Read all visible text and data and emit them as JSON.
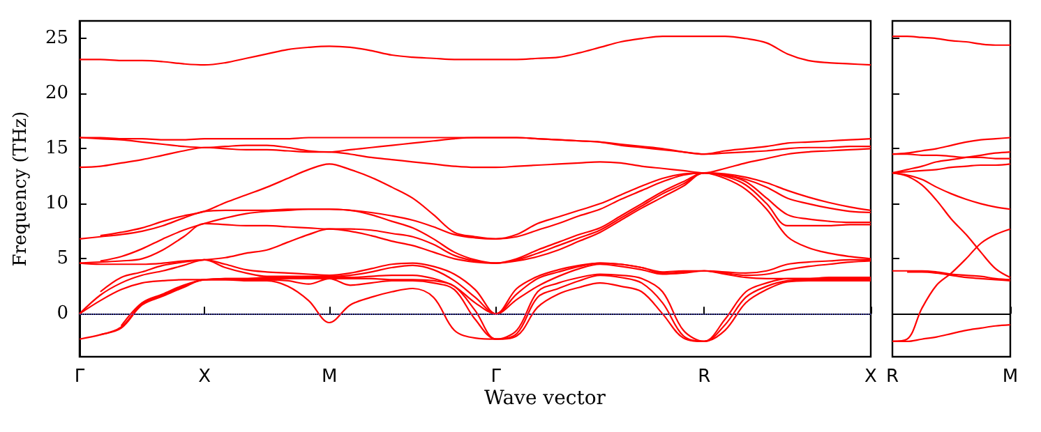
{
  "chart_data": [
    {
      "type": "line",
      "xlabel": "Wave vector",
      "ylabel": "Frequency (THz)",
      "marker": "none",
      "categories": [
        "Γ",
        null,
        null,
        null,
        null,
        null,
        "X",
        null,
        null,
        null,
        null,
        null,
        "M",
        null,
        null,
        null,
        null,
        null,
        null,
        null,
        "Γ",
        null,
        null,
        null,
        null,
        null,
        null,
        null,
        null,
        null,
        "R",
        null,
        null,
        null,
        null,
        null,
        null,
        null,
        "X"
      ],
      "ylim": [
        -3.9,
        26.6
      ],
      "yticks": [
        0,
        5,
        10,
        15,
        20,
        25
      ],
      "ref_lines": [
        {
          "axis": "y",
          "value": 0,
          "color": "#6666ff",
          "line_style": "dotted"
        }
      ],
      "series": [
        {
          "color": "#ff0000",
          "values": [
            -2.3,
            -1.9,
            -1.3,
            0.8,
            1.6,
            2.4,
            3.1,
            3.1,
            3.0,
            3.0,
            2.5,
            1.2,
            -0.8,
            0.8,
            1.5,
            2.0,
            2.3,
            1.5,
            -1.5,
            -2.2,
            -2.3,
            -2.0,
            0.6,
            1.8,
            2.4,
            2.8,
            2.5,
            2.0,
            0.0,
            -2.2,
            -2.5,
            -1.5,
            1.0,
            2.2,
            2.9,
            3.0,
            3.0,
            3.0,
            3.0
          ]
        },
        {
          "color": "#ff0000",
          "values": [
            null,
            -1.9,
            -1.2,
            0.9,
            1.7,
            2.5,
            3.1,
            3.1,
            3.1,
            3.1,
            3.0,
            2.7,
            3.2,
            2.6,
            2.8,
            3.0,
            3.0,
            2.8,
            2.2,
            -0.5,
            -2.3,
            -1.8,
            1.5,
            2.3,
            3.0,
            3.5,
            3.3,
            2.8,
            1.0,
            -2.0,
            -2.5,
            -1.0,
            1.5,
            2.5,
            3.0,
            3.1,
            3.1,
            3.1,
            3.1
          ]
        },
        {
          "color": "#ff0000",
          "values": [
            null,
            null,
            -1.1,
            1.0,
            1.8,
            2.6,
            3.1,
            3.2,
            3.2,
            3.2,
            3.2,
            3.2,
            3.2,
            3.2,
            3.2,
            3.1,
            3.1,
            3.0,
            2.5,
            0.3,
            -2.3,
            -1.5,
            2.0,
            2.8,
            3.3,
            3.6,
            3.5,
            3.2,
            2.0,
            -1.5,
            -2.5,
            -0.5,
            2.0,
            2.8,
            3.2,
            3.2,
            3.2,
            3.2,
            3.2
          ]
        },
        {
          "color": "#ff0000",
          "values": [
            0,
            1.2,
            2.2,
            2.8,
            3.0,
            3.1,
            3.1,
            3.2,
            3.2,
            3.3,
            3.3,
            3.3,
            3.3,
            3.3,
            3.4,
            3.5,
            3.5,
            3.2,
            2.5,
            1.0,
            0,
            1.3,
            2.5,
            3.4,
            4.1,
            4.5,
            4.3,
            4.0,
            3.6,
            3.7,
            3.9,
            3.6,
            3.3,
            3.2,
            3.2,
            3.2,
            3.3,
            3.3,
            3.3
          ]
        },
        {
          "color": "#ff0000",
          "values": [
            0,
            1.7,
            2.8,
            3.5,
            3.9,
            4.4,
            4.9,
            4.2,
            3.7,
            3.4,
            3.4,
            3.4,
            3.4,
            3.5,
            3.8,
            4.2,
            4.4,
            4.0,
            3.0,
            1.5,
            0,
            1.8,
            3.2,
            3.8,
            4.3,
            4.6,
            4.5,
            4.2,
            3.7,
            3.8,
            3.9,
            3.7,
            3.5,
            3.6,
            4.0,
            4.3,
            4.5,
            4.7,
            4.8
          ]
        },
        {
          "color": "#ff0000",
          "values": [
            null,
            2.0,
            3.3,
            3.8,
            4.4,
            4.7,
            4.9,
            4.5,
            4.0,
            3.8,
            3.7,
            3.6,
            3.5,
            3.7,
            4.1,
            4.5,
            4.6,
            4.3,
            3.6,
            2.2,
            0,
            2.3,
            3.4,
            4.0,
            4.4,
            4.6,
            4.5,
            4.2,
            3.8,
            3.9,
            3.9,
            3.8,
            3.7,
            3.9,
            4.5,
            4.7,
            4.8,
            4.9,
            4.9
          ]
        },
        {
          "color": "#ff0000",
          "values": [
            4.6,
            4.5,
            4.5,
            4.5,
            4.6,
            4.8,
            4.9,
            5.1,
            5.5,
            5.8,
            6.5,
            7.2,
            7.7,
            7.5,
            7.1,
            6.6,
            6.2,
            5.6,
            5.0,
            4.7,
            4.6,
            4.8,
            5.2,
            5.8,
            6.6,
            7.4,
            8.5,
            9.6,
            10.6,
            11.6,
            12.8,
            12.3,
            11.3,
            9.5,
            7.0,
            6.0,
            5.5,
            5.2,
            5.0
          ]
        },
        {
          "color": "#ff0000",
          "values": [
            4.6,
            4.7,
            4.8,
            5.0,
            5.8,
            7.0,
            8.2,
            8.1,
            8.0,
            8.0,
            7.9,
            7.8,
            7.7,
            7.7,
            7.6,
            7.3,
            7.0,
            6.3,
            5.3,
            4.8,
            4.6,
            4.9,
            5.5,
            6.2,
            6.9,
            7.6,
            8.7,
            9.8,
            10.9,
            11.8,
            12.8,
            12.5,
            11.7,
            10.0,
            8.0,
            8.0,
            8.0,
            8.1,
            8.1
          ]
        },
        {
          "color": "#ff0000",
          "values": [
            null,
            4.8,
            5.2,
            5.9,
            6.8,
            7.6,
            8.2,
            8.7,
            9.1,
            9.3,
            9.4,
            9.5,
            9.5,
            9.4,
            9.0,
            8.4,
            7.8,
            6.8,
            5.6,
            4.9,
            4.6,
            5.0,
            5.8,
            6.5,
            7.2,
            7.8,
            8.9,
            10.0,
            11.1,
            12.0,
            12.8,
            12.6,
            12.0,
            10.5,
            9.0,
            8.6,
            8.4,
            8.3,
            8.3
          ]
        },
        {
          "color": "#ff0000",
          "values": [
            6.8,
            7.0,
            7.2,
            7.5,
            8.0,
            8.7,
            9.3,
            9.4,
            9.4,
            9.4,
            9.5,
            9.5,
            9.5,
            9.4,
            9.2,
            8.9,
            8.5,
            7.9,
            7.2,
            6.9,
            6.8,
            7.0,
            7.6,
            8.2,
            8.9,
            9.5,
            10.4,
            11.2,
            12.0,
            12.6,
            12.8,
            12.6,
            12.2,
            11.5,
            10.5,
            10.0,
            9.6,
            9.3,
            9.2
          ]
        },
        {
          "color": "#ff0000",
          "values": [
            null,
            7.1,
            7.4,
            7.8,
            8.4,
            8.9,
            9.3,
            10.1,
            10.8,
            11.5,
            12.3,
            13.1,
            13.6,
            13.1,
            12.4,
            11.5,
            10.5,
            9.0,
            7.4,
            7.0,
            6.8,
            7.2,
            8.2,
            8.8,
            9.4,
            10.0,
            10.8,
            11.6,
            12.3,
            12.7,
            12.8,
            12.7,
            12.4,
            11.9,
            11.2,
            10.6,
            10.1,
            9.7,
            9.4
          ]
        },
        {
          "color": "#ff0000",
          "values": [
            13.3,
            13.4,
            13.7,
            14.0,
            14.4,
            14.8,
            15.1,
            15.0,
            14.9,
            14.9,
            14.8,
            14.7,
            14.7,
            14.5,
            14.2,
            14.0,
            13.8,
            13.6,
            13.4,
            13.3,
            13.3,
            13.4,
            13.5,
            13.6,
            13.7,
            13.8,
            13.7,
            13.4,
            13.2,
            13.0,
            12.8,
            13.2,
            13.7,
            14.1,
            14.5,
            14.7,
            14.8,
            14.9,
            15.0
          ]
        },
        {
          "color": "#ff0000",
          "values": [
            16.0,
            15.9,
            15.8,
            15.6,
            15.4,
            15.2,
            15.1,
            15.2,
            15.3,
            15.3,
            15.1,
            14.8,
            14.7,
            14.9,
            15.1,
            15.3,
            15.5,
            15.7,
            15.9,
            16.0,
            16.0,
            16.0,
            15.9,
            15.8,
            15.7,
            15.6,
            15.3,
            15.1,
            14.9,
            14.7,
            14.5,
            14.6,
            14.7,
            14.8,
            15.0,
            15.1,
            15.1,
            15.2,
            15.2
          ]
        },
        {
          "color": "#ff0000",
          "values": [
            16.0,
            16.0,
            15.9,
            15.9,
            15.8,
            15.8,
            15.9,
            15.9,
            15.9,
            15.9,
            15.9,
            16.0,
            16.0,
            16.0,
            16.0,
            16.0,
            16.0,
            16.0,
            16.0,
            16.0,
            16.0,
            16.0,
            15.9,
            15.8,
            15.7,
            15.6,
            15.4,
            15.2,
            15.0,
            14.7,
            14.5,
            14.8,
            15.0,
            15.2,
            15.5,
            15.6,
            15.7,
            15.8,
            15.9
          ]
        },
        {
          "color": "#ff0000",
          "values": [
            23.1,
            23.1,
            23.0,
            23.0,
            22.9,
            22.7,
            22.6,
            22.8,
            23.2,
            23.6,
            24.0,
            24.2,
            24.3,
            24.2,
            23.9,
            23.5,
            23.3,
            23.2,
            23.1,
            23.1,
            23.1,
            23.1,
            23.2,
            23.3,
            23.7,
            24.2,
            24.7,
            25.0,
            25.2,
            25.2,
            25.2,
            25.2,
            25.0,
            24.6,
            23.6,
            23.0,
            22.8,
            22.7,
            22.6
          ]
        }
      ]
    },
    {
      "type": "line",
      "marker": "none",
      "tick_labels": "x",
      "categories": [
        "R",
        null,
        null,
        null,
        null,
        null,
        null,
        null,
        "M"
      ],
      "ylim": [
        -3.9,
        26.6
      ],
      "yticks": [
        0,
        5,
        10,
        15,
        20,
        25
      ],
      "series": [
        {
          "color": "#ff0000",
          "values": [
            -2.5,
            -2.5,
            -2.3,
            -2.1,
            -1.8,
            -1.5,
            -1.3,
            -1.1,
            -1.0
          ]
        },
        {
          "color": "#ff0000",
          "values": [
            -2.5,
            -2.3,
            0.5,
            2.6,
            3.7,
            5.0,
            6.4,
            7.2,
            7.7
          ]
        },
        {
          "color": "#ff0000",
          "values": [
            3.9,
            3.9,
            3.9,
            3.8,
            3.6,
            3.5,
            3.4,
            3.2,
            3.1
          ]
        },
        {
          "color": "#ff0000",
          "values": [
            null,
            3.8,
            3.8,
            3.7,
            3.5,
            3.3,
            3.2,
            3.1,
            3.0
          ]
        },
        {
          "color": "#ff0000",
          "values": [
            12.8,
            12.5,
            11.7,
            10.3,
            8.6,
            7.2,
            5.6,
            4.1,
            3.3
          ]
        },
        {
          "color": "#ff0000",
          "values": [
            12.8,
            12.6,
            12.2,
            11.5,
            10.9,
            10.4,
            10.0,
            9.7,
            9.5
          ]
        },
        {
          "color": "#ff0000",
          "values": [
            12.8,
            12.9,
            13.0,
            13.1,
            13.3,
            13.4,
            13.5,
            13.5,
            13.6
          ]
        },
        {
          "color": "#ff0000",
          "values": [
            12.8,
            13.1,
            13.4,
            13.8,
            14.0,
            14.2,
            14.4,
            14.6,
            14.7
          ]
        },
        {
          "color": "#ff0000",
          "values": [
            14.5,
            14.5,
            14.4,
            14.4,
            14.3,
            14.2,
            14.2,
            14.1,
            14.1
          ]
        },
        {
          "color": "#ff0000",
          "values": [
            14.5,
            14.6,
            14.8,
            15.0,
            15.3,
            15.6,
            15.8,
            15.9,
            16.0
          ]
        },
        {
          "color": "#ff0000",
          "values": [
            25.2,
            25.2,
            25.1,
            25.0,
            24.8,
            24.7,
            24.5,
            24.4,
            24.4
          ]
        }
      ]
    }
  ]
}
